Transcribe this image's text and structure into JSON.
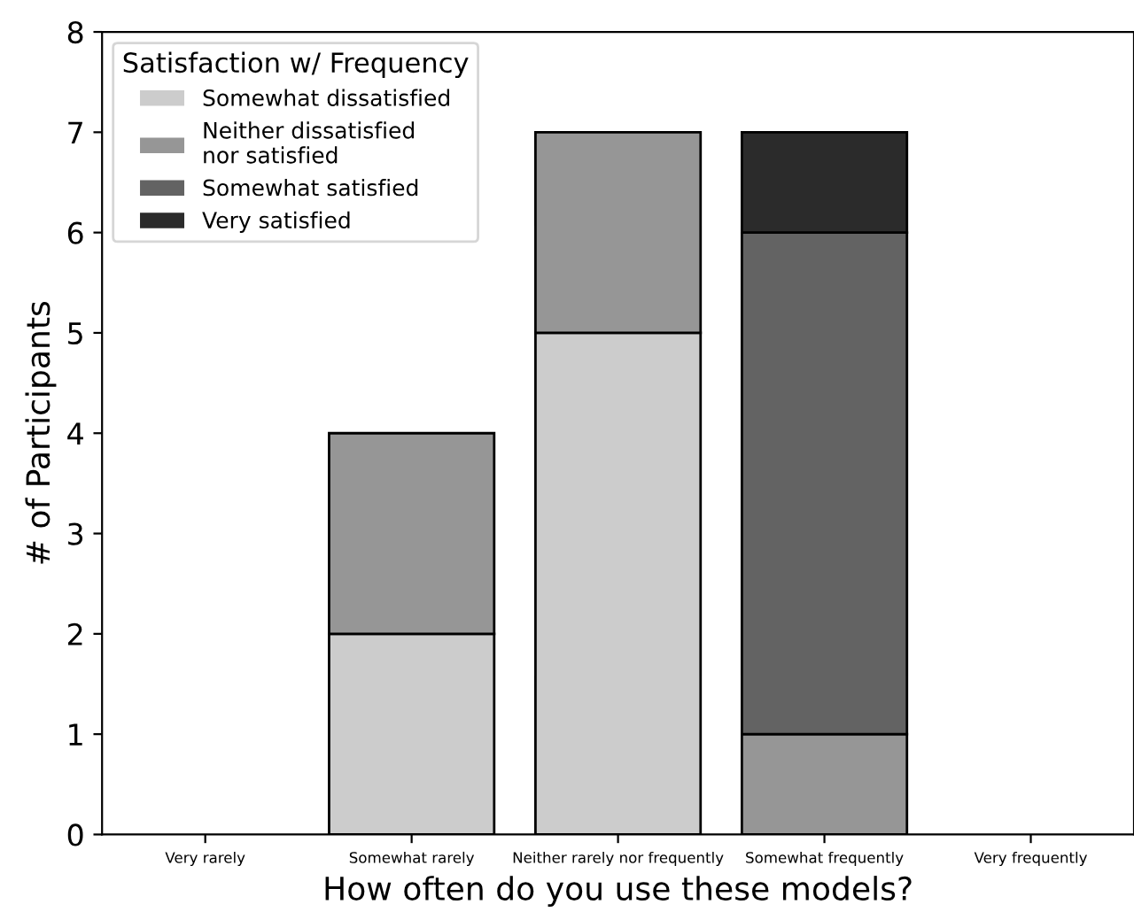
{
  "chart_data": {
    "type": "bar",
    "stacked": true,
    "xlabel": "How often do you use these models?",
    "ylabel": "# of Participants",
    "legend_title": "Satisfaction w/ Frequency",
    "legend": "top left",
    "grid": false,
    "categories": [
      "Very rarely",
      "Somewhat rarely",
      "Neither rarely nor frequently",
      "Somewhat frequently",
      "Very frequently"
    ],
    "ylim": [
      0,
      8
    ],
    "yticks": [
      0,
      1,
      2,
      3,
      4,
      5,
      6,
      7,
      8
    ],
    "series": [
      {
        "name": "Somewhat dissatisfied",
        "color": "#cccccc",
        "values": [
          0,
          2,
          5,
          0,
          0
        ]
      },
      {
        "name": "Neither dissatisfied\nnor satisfied",
        "color": "#969696",
        "values": [
          0,
          2,
          2,
          1,
          0
        ]
      },
      {
        "name": "Somewhat satisfied",
        "color": "#636363",
        "values": [
          0,
          0,
          0,
          5,
          0
        ]
      },
      {
        "name": "Very satisfied",
        "color": "#2b2b2b",
        "values": [
          0,
          0,
          0,
          1,
          0
        ]
      }
    ]
  }
}
